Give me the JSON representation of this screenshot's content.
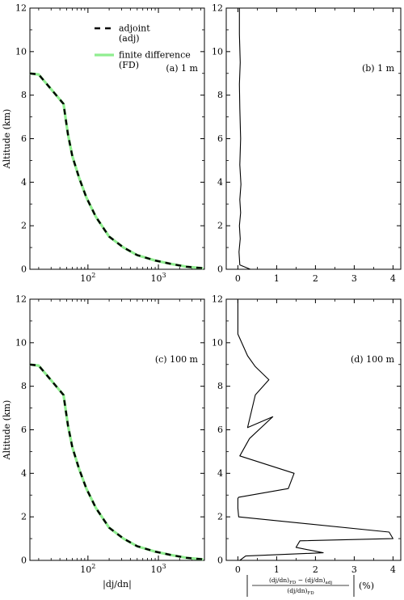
{
  "chart_data": [
    {
      "type": "line",
      "panel": "a",
      "annotation": "(a) 1 m",
      "ylabel": "Altitude (km)",
      "xlabel": "",
      "xscale": "log",
      "xlim": [
        15,
        4500
      ],
      "ylim": [
        0,
        12
      ],
      "xticks": [
        {
          "value": 100,
          "base": "10",
          "exp": "2"
        },
        {
          "value": 1000,
          "base": "10",
          "exp": "3"
        }
      ],
      "yticks": [
        0,
        2,
        4,
        6,
        8,
        10,
        12
      ],
      "legend": {
        "position": "top-center",
        "entries": [
          "adjoint",
          "(adj)",
          "finite difference",
          "(FD)"
        ]
      },
      "series": [
        {
          "name": "adjoint (adj)",
          "color": "#000000",
          "style": "dashed",
          "x": [
            15,
            20,
            45,
            52,
            60,
            75,
            95,
            130,
            200,
            320,
            500,
            900,
            1500,
            2500,
            4300
          ],
          "y": [
            9.0,
            8.95,
            7.6,
            6.2,
            5.2,
            4.2,
            3.3,
            2.4,
            1.5,
            1.0,
            0.65,
            0.4,
            0.25,
            0.12,
            0.05
          ]
        },
        {
          "name": "finite difference (FD)",
          "color": "#90ee90",
          "style": "solid",
          "x": [
            15,
            20,
            45,
            52,
            60,
            75,
            95,
            130,
            200,
            320,
            500,
            900,
            1500,
            2500,
            4300
          ],
          "y": [
            9.0,
            8.95,
            7.6,
            6.2,
            5.2,
            4.2,
            3.3,
            2.4,
            1.5,
            1.0,
            0.65,
            0.4,
            0.25,
            0.12,
            0.05
          ]
        }
      ]
    },
    {
      "type": "line",
      "panel": "b",
      "annotation": "(b) 1 m",
      "xlim": [
        -0.3,
        4.2
      ],
      "ylim": [
        0,
        12
      ],
      "xticks": [
        0,
        1,
        2,
        3,
        4
      ],
      "yticks": [
        0,
        2,
        4,
        6,
        8,
        10,
        12
      ],
      "series": [
        {
          "color": "#000000",
          "x": [
            0.32,
            0.05,
            0.03,
            0.06,
            0.04,
            0.07,
            0.05,
            0.08,
            0.05,
            0.07,
            0.05,
            0.04,
            0.06,
            0.04,
            0.04
          ],
          "y": [
            0.0,
            0.2,
            0.8,
            1.4,
            2.0,
            2.6,
            3.2,
            3.9,
            4.8,
            6.0,
            7.4,
            8.5,
            9.5,
            10.8,
            12.0
          ]
        }
      ]
    },
    {
      "type": "line",
      "panel": "c",
      "annotation": "(c) 100 m",
      "ylabel": "Altitude (km)",
      "xlabel": "|dj/dn|",
      "xscale": "log",
      "xlim": [
        15,
        4500
      ],
      "ylim": [
        0,
        12
      ],
      "xticks": [
        {
          "value": 100,
          "base": "10",
          "exp": "2"
        },
        {
          "value": 1000,
          "base": "10",
          "exp": "3"
        }
      ],
      "yticks": [
        0,
        2,
        4,
        6,
        8,
        10,
        12
      ],
      "series": [
        {
          "name": "adjoint (adj)",
          "color": "#000000",
          "style": "dashed",
          "x": [
            15,
            20,
            45,
            52,
            60,
            75,
            95,
            130,
            200,
            320,
            500,
            900,
            1500,
            2500,
            4300
          ],
          "y": [
            9.0,
            8.95,
            7.6,
            6.2,
            5.2,
            4.2,
            3.3,
            2.4,
            1.5,
            1.0,
            0.65,
            0.4,
            0.25,
            0.12,
            0.05
          ]
        },
        {
          "name": "finite difference (FD)",
          "color": "#90ee90",
          "style": "solid",
          "x": [
            15,
            20,
            45,
            52,
            60,
            75,
            95,
            130,
            200,
            320,
            500,
            900,
            1500,
            2500,
            4300
          ],
          "y": [
            9.0,
            8.95,
            7.6,
            6.2,
            5.2,
            4.2,
            3.3,
            2.4,
            1.5,
            1.0,
            0.65,
            0.4,
            0.25,
            0.12,
            0.05
          ]
        }
      ]
    },
    {
      "type": "line",
      "panel": "d",
      "annotation": "(d) 100 m",
      "xlabel": {
        "num": "(dj/dn)",
        "num_sub1": "FD",
        "num_mid": " − (dj/dn)",
        "num_sub2": "adj",
        "den": "(dj/dn)",
        "den_sub": "FD",
        "unit": "(%)"
      },
      "xlim": [
        -0.3,
        4.2
      ],
      "ylim": [
        0,
        12
      ],
      "xticks": [
        0,
        1,
        2,
        3,
        4
      ],
      "yticks": [
        0,
        2,
        4,
        6,
        8,
        10,
        12
      ],
      "series": [
        {
          "color": "#000000",
          "x": [
            0.05,
            0.2,
            2.2,
            1.5,
            1.6,
            4.0,
            3.9,
            0.02,
            0.0,
            0.0,
            0.02,
            1.3,
            1.45,
            0.05,
            0.3,
            0.9,
            0.25,
            0.45,
            0.8,
            0.45,
            0.25,
            0.0,
            0.0
          ],
          "y": [
            0.0,
            0.2,
            0.35,
            0.6,
            0.9,
            1.0,
            1.3,
            2.0,
            2.4,
            2.85,
            2.9,
            3.3,
            4.0,
            4.8,
            5.6,
            6.6,
            6.1,
            7.6,
            8.3,
            8.9,
            9.4,
            10.4,
            12.0
          ]
        }
      ]
    }
  ]
}
